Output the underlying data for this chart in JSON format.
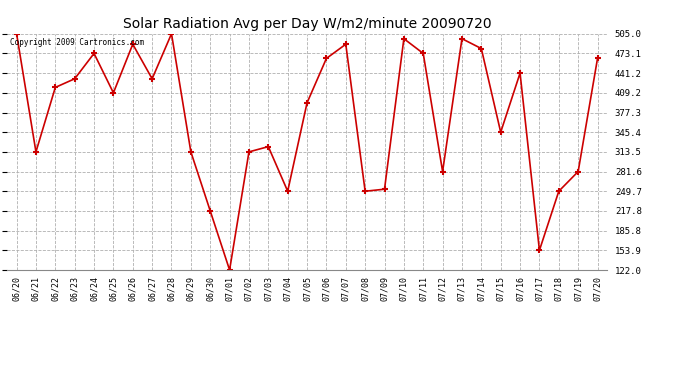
{
  "title": "Solar Radiation Avg per Day W/m2/minute 20090720",
  "copyright": "Copyright 2009 Cartronics.com",
  "labels": [
    "06/20",
    "06/21",
    "06/22",
    "06/23",
    "06/24",
    "06/25",
    "06/26",
    "06/27",
    "06/28",
    "06/29",
    "06/30",
    "07/01",
    "07/02",
    "07/03",
    "07/04",
    "07/05",
    "07/06",
    "07/07",
    "07/08",
    "07/09",
    "07/10",
    "07/11",
    "07/12",
    "07/13",
    "07/14",
    "07/15",
    "07/16",
    "07/17",
    "07/18",
    "07/19",
    "07/20"
  ],
  "values": [
    505.0,
    313.5,
    418.0,
    432.0,
    473.1,
    409.2,
    488.0,
    432.0,
    505.0,
    313.5,
    217.8,
    122.0,
    313.5,
    322.0,
    249.7,
    393.0,
    465.0,
    488.0,
    249.7,
    253.0,
    497.0,
    473.1,
    281.6,
    497.0,
    481.0,
    345.4,
    441.2,
    153.9,
    249.7,
    281.6,
    465.0
  ],
  "line_color": "#cc0000",
  "marker_color": "#cc0000",
  "bg_color": "#ffffff",
  "grid_color": "#b0b0b0",
  "ylim_min": 122.0,
  "ylim_max": 505.0,
  "yticks": [
    122.0,
    153.9,
    185.8,
    217.8,
    249.7,
    281.6,
    313.5,
    345.4,
    377.3,
    409.2,
    441.2,
    473.1,
    505.0
  ]
}
